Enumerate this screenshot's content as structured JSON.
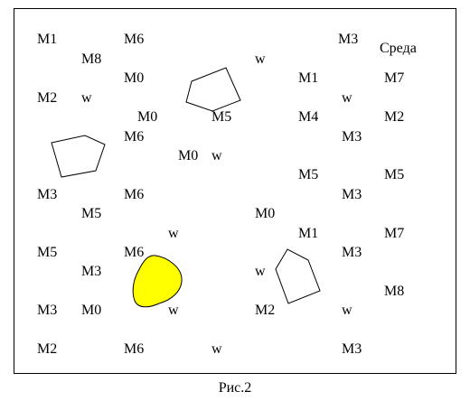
{
  "figure": {
    "caption": "Рис.2",
    "legend": "Среда",
    "labels": [
      "M1",
      "M6",
      "M3",
      "M8",
      "w",
      "M0",
      "M1",
      "M7",
      "M2",
      "w",
      "w",
      "M0",
      "M5",
      "M4",
      "M2",
      "M6",
      "M3",
      "M0",
      "w",
      "M5",
      "M5",
      "M3",
      "M6",
      "M3",
      "M5",
      "M0",
      "M7",
      "w",
      "M1",
      "M5",
      "M6",
      "M3",
      "M3",
      "w",
      "M8",
      "M3",
      "M0",
      "w",
      "M2",
      "w",
      "M2",
      "M6",
      "w",
      "M3"
    ],
    "colors": {
      "blob": "#ffff00",
      "stroke": "#000000"
    }
  }
}
